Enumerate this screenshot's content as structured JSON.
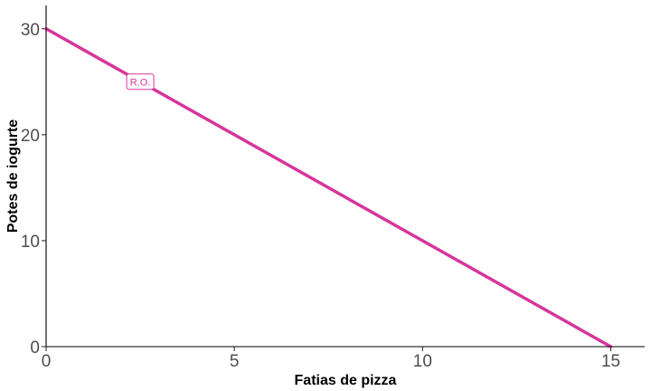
{
  "chart_data": {
    "type": "line",
    "xlabel": "Fatias de pizza",
    "ylabel": "Potes de iogurte",
    "xlim": [
      0,
      15.9
    ],
    "ylim": [
      0,
      32.2
    ],
    "xticks": [
      0,
      5,
      10,
      15
    ],
    "yticks": [
      0,
      10,
      20,
      30
    ],
    "grid": false,
    "legend": "none",
    "series": [
      {
        "x": [
          0,
          15
        ],
        "y": [
          30,
          0
        ],
        "color": "#d6369b"
      }
    ],
    "annotations": [
      {
        "text": "R.O.",
        "x": 2.5,
        "y": 25,
        "color": "#d6369b"
      }
    ]
  }
}
